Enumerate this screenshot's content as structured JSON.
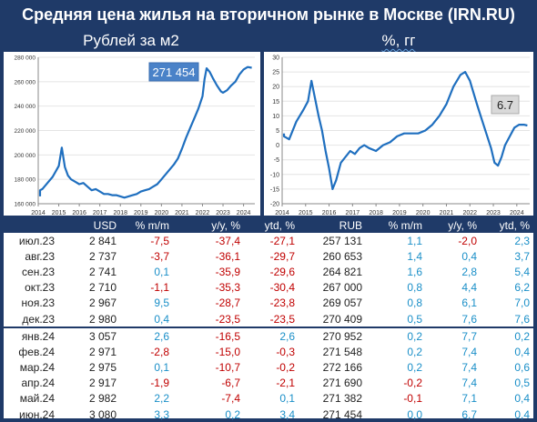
{
  "title": "Средняя цена жилья на вторичном рынке в Москве (IRN.RU)",
  "left_panel": {
    "title": "Рублей за м2"
  },
  "right_panel": {
    "title": "%, гг"
  },
  "chart_data": [
    {
      "type": "line",
      "title": "Рублей за м2",
      "xlim": [
        2014,
        2024.55
      ],
      "ylim": [
        160000,
        280000
      ],
      "yticks": [
        "160 000",
        "180 000",
        "200 000",
        "220 000",
        "240 000",
        "260 000",
        "280 000"
      ],
      "xticks": [
        "2014",
        "2015",
        "2016",
        "2017",
        "2018",
        "2019",
        "2020",
        "2021",
        "2022",
        "2023",
        "2024"
      ],
      "callout": "271 454",
      "series": [
        {
          "x": [
            2013.6,
            2014,
            2014.2,
            2014.5,
            2014.7,
            2015,
            2015.15,
            2015.3,
            2015.45,
            2015.6,
            2015.8,
            2016,
            2016.2,
            2016.4,
            2016.6,
            2016.8,
            2017,
            2017.2,
            2017.4,
            2017.6,
            2017.8,
            2018,
            2018.2,
            2018.4,
            2018.6,
            2018.8,
            2019,
            2019.2,
            2019.4,
            2019.6,
            2019.8,
            2020,
            2020.2,
            2020.4,
            2020.6,
            2020.8,
            2021,
            2021.2,
            2021.4,
            2021.6,
            2021.8,
            2022,
            2022.1,
            2022.2,
            2022.35,
            2022.5,
            2022.7,
            2022.9,
            2023,
            2023.2,
            2023.4,
            2023.6,
            2023.8,
            2024,
            2024.2,
            2024.4
          ],
          "y": [
            166000,
            171000,
            172000,
            178000,
            182000,
            191000,
            206000,
            190000,
            183000,
            180000,
            178000,
            176000,
            177000,
            174000,
            171000,
            172000,
            170000,
            168000,
            168000,
            167000,
            167000,
            166000,
            165000,
            166000,
            167000,
            168000,
            170000,
            171000,
            172000,
            174000,
            176000,
            180000,
            184000,
            188000,
            192000,
            197000,
            205000,
            214000,
            222000,
            230000,
            238000,
            248000,
            262000,
            271000,
            268000,
            263000,
            257000,
            252000,
            251000,
            253000,
            257000,
            260000,
            266000,
            270000,
            272000,
            271454
          ]
        }
      ]
    },
    {
      "type": "line",
      "title": "%, гг",
      "xlim": [
        2014,
        2024.55
      ],
      "ylim": [
        -20,
        30
      ],
      "yticks": [
        "-20",
        "-15",
        "-10",
        "-5",
        "0",
        "5",
        "10",
        "15",
        "20",
        "25",
        "30"
      ],
      "xticks": [
        "2014",
        "2015",
        "2016",
        "2017",
        "2018",
        "2019",
        "2020",
        "2021",
        "2022",
        "2023",
        "2024"
      ],
      "callout": "6.7",
      "series": [
        {
          "x": [
            2013.6,
            2014,
            2014.3,
            2014.6,
            2014.9,
            2015.1,
            2015.25,
            2015.4,
            2015.55,
            2015.7,
            2015.85,
            2016,
            2016.15,
            2016.3,
            2016.5,
            2016.7,
            2016.9,
            2017.1,
            2017.3,
            2017.5,
            2017.7,
            2018,
            2018.3,
            2018.6,
            2018.9,
            2019.2,
            2019.5,
            2019.8,
            2020.1,
            2020.4,
            2020.7,
            2021,
            2021.3,
            2021.6,
            2021.8,
            2022,
            2022.15,
            2022.3,
            2022.5,
            2022.7,
            2022.9,
            2023.05,
            2023.2,
            2023.35,
            2023.5,
            2023.7,
            2023.9,
            2024.1,
            2024.3,
            2024.45
          ],
          "y": [
            4,
            3,
            2,
            8,
            12,
            15,
            22,
            16,
            10,
            5,
            -2,
            -8,
            -15,
            -12,
            -6,
            -4,
            -2,
            -3,
            -1,
            0,
            -1,
            -2,
            0,
            1,
            3,
            4,
            4,
            4,
            5,
            7,
            10,
            14,
            20,
            24,
            25,
            22,
            18,
            14,
            9,
            4,
            -1,
            -6,
            -7,
            -4,
            0,
            3,
            6,
            7,
            7,
            6.7
          ]
        }
      ]
    }
  ],
  "table": {
    "headers": [
      "",
      "USD",
      "% m/m",
      "y/y, %",
      "ytd, %",
      "RUB",
      "% m/m",
      "y/y, %",
      "ytd, %"
    ],
    "rows": [
      [
        "июл.23",
        "2 841",
        "-7,5",
        "-37,4",
        "-27,1",
        "257 131",
        "1,1",
        "-2,0",
        "2,3"
      ],
      [
        "авг.23",
        "2 737",
        "-3,7",
        "-36,1",
        "-29,7",
        "260 653",
        "1,4",
        "0,4",
        "3,7"
      ],
      [
        "сен.23",
        "2 741",
        "0,1",
        "-35,9",
        "-29,6",
        "264 821",
        "1,6",
        "2,8",
        "5,4"
      ],
      [
        "окт.23",
        "2 710",
        "-1,1",
        "-35,3",
        "-30,4",
        "267 000",
        "0,8",
        "4,4",
        "6,2"
      ],
      [
        "ноя.23",
        "2 967",
        "9,5",
        "-28,7",
        "-23,8",
        "269 057",
        "0,8",
        "6,1",
        "7,0"
      ],
      [
        "дек.23",
        "2 980",
        "0,4",
        "-23,5",
        "-23,5",
        "270 409",
        "0,5",
        "7,6",
        "7,6"
      ],
      [
        "янв.24",
        "3 057",
        "2,6",
        "-16,5",
        "2,6",
        "270 952",
        "0,2",
        "7,7",
        "0,2"
      ],
      [
        "фев.24",
        "2 971",
        "-2,8",
        "-15,0",
        "-0,3",
        "271 548",
        "0,2",
        "7,4",
        "0,4"
      ],
      [
        "мар.24",
        "2 975",
        "0,1",
        "-10,7",
        "-0,2",
        "272 166",
        "0,2",
        "7,4",
        "0,6"
      ],
      [
        "апр.24",
        "2 917",
        "-1,9",
        "-6,7",
        "-2,1",
        "271 690",
        "-0,2",
        "7,4",
        "0,5"
      ],
      [
        "май.24",
        "2 982",
        "2,2",
        "-7,4",
        "0,1",
        "271 382",
        "-0,1",
        "7,1",
        "0,4"
      ],
      [
        "июн.24",
        "3 080",
        "3,3",
        "0,2",
        "3,4",
        "271 454",
        "0,0",
        "6,7",
        "0,4"
      ]
    ],
    "separator_after_index": 5
  },
  "colors": {
    "background": "#1f3a68",
    "line": "#1f6fbf",
    "negative": "#c00000",
    "positive": "#1a8fc8",
    "callout_left": "#4a82c8",
    "callout_right": "#d9d9d9"
  }
}
